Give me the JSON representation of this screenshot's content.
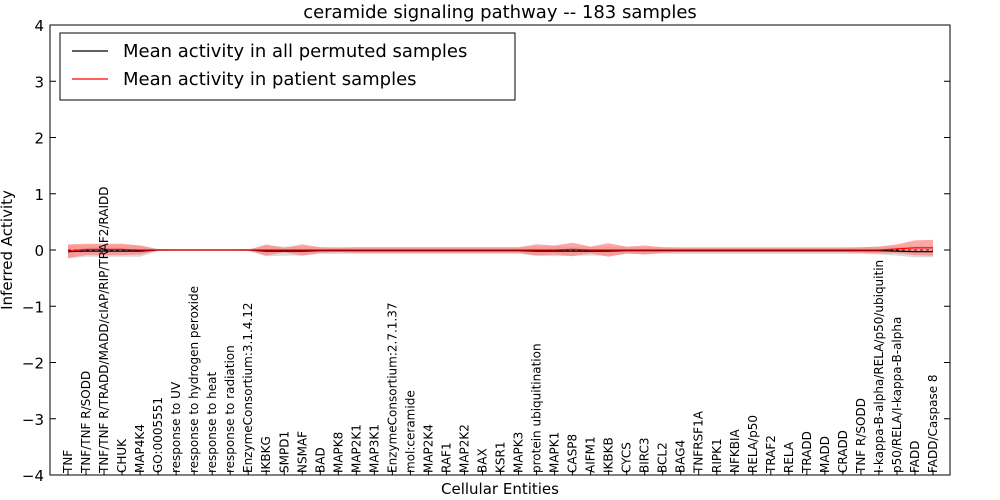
{
  "chart_data": {
    "type": "line",
    "title": "ceramide signaling pathway -- 183 samples",
    "xlabel": "Cellular Entities",
    "ylabel": "Inferred Activity",
    "ylim": [
      -4,
      4
    ],
    "yticks": [
      -4,
      -3,
      -2,
      -1,
      0,
      1,
      2,
      3,
      4
    ],
    "legend_position": "top-left",
    "categories": [
      "TNF",
      "TNF/TNF R/SODD",
      "TNF/TNF R/TRADD/MADD/cIAP/RIP/TRAF2/RAIDD",
      "CHUK",
      "MAP4K4",
      "GO:0005551",
      "response to UV",
      "response to hydrogen peroxide",
      "response to heat",
      "response to radiation",
      "EnzymeConsortium:3.1.4.12",
      "IKBKG",
      "SMPD1",
      "NSMAF",
      "BAD",
      "MAPK8",
      "MAP2K1",
      "MAP3K1",
      "EnzymeConsortium:2.7.1.37",
      "mol:ceramide",
      "MAP2K4",
      "RAF1",
      "MAP2K2",
      "BAX",
      "KSR1",
      "MAPK3",
      "protein ubiquitination",
      "MAPK1",
      "CASP8",
      "AIFM1",
      "IKBKB",
      "CYCS",
      "BIRC3",
      "BCL2",
      "BAG4",
      "TNFRSF1A",
      "RIPK1",
      "NFKBIA",
      "RELA/p50",
      "TRAF2",
      "RELA",
      "TRADD",
      "MADD",
      "CRADD",
      "TNF R/SODD",
      "I-kappa-B-alpha/RELA/p50/ubiquitin",
      "p50/RELA/I-kappa-B-alpha",
      "FADD",
      "FADD/Caspase 8"
    ],
    "series": [
      {
        "name": "Mean activity in all permuted samples",
        "color": "#000000",
        "band_color": "#bbbbbb",
        "values": [
          -0.03,
          -0.02,
          -0.02,
          -0.02,
          -0.02,
          0,
          0,
          0,
          0,
          0,
          0,
          -0.02,
          -0.02,
          -0.02,
          -0.01,
          -0.01,
          -0.01,
          -0.01,
          -0.01,
          -0.01,
          -0.01,
          -0.01,
          -0.01,
          -0.01,
          -0.01,
          -0.01,
          -0.02,
          -0.02,
          -0.02,
          -0.02,
          -0.02,
          -0.01,
          -0.01,
          -0.01,
          -0.01,
          -0.01,
          -0.01,
          -0.01,
          -0.01,
          -0.01,
          -0.01,
          -0.01,
          -0.01,
          -0.01,
          -0.01,
          -0.01,
          -0.02,
          -0.03,
          -0.03
        ],
        "band": [
          0.12,
          0.1,
          0.1,
          0.1,
          0.1,
          0.02,
          0.01,
          0.01,
          0.01,
          0.01,
          0.02,
          0.09,
          0.08,
          0.08,
          0.06,
          0.06,
          0.06,
          0.06,
          0.06,
          0.06,
          0.06,
          0.06,
          0.06,
          0.06,
          0.06,
          0.06,
          0.08,
          0.09,
          0.08,
          0.08,
          0.08,
          0.06,
          0.06,
          0.06,
          0.06,
          0.06,
          0.06,
          0.06,
          0.06,
          0.06,
          0.06,
          0.06,
          0.06,
          0.06,
          0.06,
          0.07,
          0.08,
          0.1,
          0.1
        ]
      },
      {
        "name": "Mean activity in patient samples",
        "color": "#ff0000",
        "band_color": "#ff8080",
        "values": [
          -0.02,
          0.01,
          0.01,
          0.01,
          0.0,
          0,
          0,
          0,
          0,
          0,
          0,
          0,
          0.0,
          0.0,
          0.0,
          0.0,
          0.0,
          0.0,
          0.0,
          0.0,
          0.0,
          0.0,
          0.0,
          0.0,
          0.0,
          0.0,
          0.0,
          0.0,
          0.01,
          0.0,
          0.0,
          0.0,
          0.0,
          0.0,
          0.0,
          0.0,
          0.0,
          0.0,
          0.0,
          0.0,
          0.0,
          0.0,
          0.0,
          0.0,
          0.0,
          0.0,
          0.02,
          0.04,
          0.04
        ],
        "band": [
          0.12,
          0.1,
          0.1,
          0.1,
          0.08,
          0.01,
          0.0,
          0.0,
          0.0,
          0.0,
          0.0,
          0.1,
          0.04,
          0.1,
          0.05,
          0.04,
          0.05,
          0.05,
          0.05,
          0.05,
          0.05,
          0.05,
          0.05,
          0.05,
          0.05,
          0.05,
          0.1,
          0.08,
          0.12,
          0.06,
          0.12,
          0.06,
          0.08,
          0.05,
          0.04,
          0.04,
          0.04,
          0.04,
          0.04,
          0.04,
          0.04,
          0.04,
          0.04,
          0.04,
          0.05,
          0.06,
          0.08,
          0.13,
          0.14
        ]
      }
    ]
  }
}
